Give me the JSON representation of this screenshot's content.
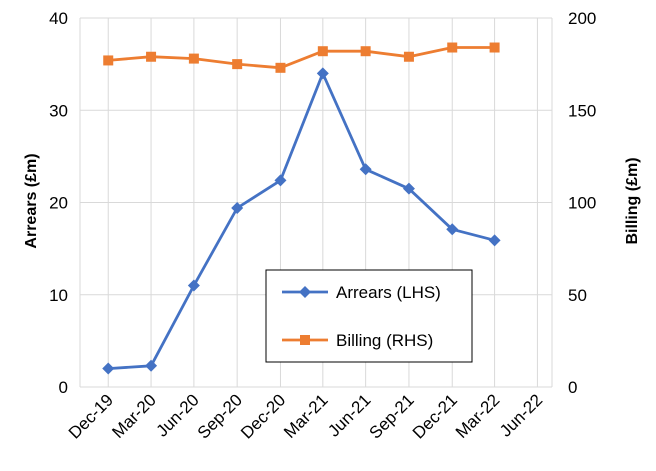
{
  "chart_data": {
    "type": "line",
    "categories": [
      "Dec-19",
      "Mar-20",
      "Jun-20",
      "Sep-20",
      "Dec-20",
      "Mar-21",
      "Jun-21",
      "Sep-21",
      "Dec-21",
      "Mar-22",
      "Jun-22"
    ],
    "series": [
      {
        "name": "Arrears (LHS)",
        "axis": "left",
        "color": "#4472C4",
        "marker": "diamond",
        "points": [
          {
            "x": "2019-12-31",
            "y": 2.0
          },
          {
            "x": "2020-03-31",
            "y": 2.3
          },
          {
            "x": "2020-06-30",
            "y": 11.0
          },
          {
            "x": "2020-09-30",
            "y": 19.4
          },
          {
            "x": "2020-12-31",
            "y": 22.4
          },
          {
            "x": "2021-03-31",
            "y": 34.0
          },
          {
            "x": "2021-06-30",
            "y": 23.6
          },
          {
            "x": "2021-09-30",
            "y": 21.5
          },
          {
            "x": "2021-12-31",
            "y": 17.1
          },
          {
            "x": "2022-03-31",
            "y": 15.9
          }
        ]
      },
      {
        "name": "Billing (RHS)",
        "axis": "right",
        "color": "#ED7D31",
        "marker": "square",
        "points": [
          {
            "x": "2019-12-31",
            "y": 177
          },
          {
            "x": "2020-03-31",
            "y": 179
          },
          {
            "x": "2020-06-30",
            "y": 178
          },
          {
            "x": "2020-09-30",
            "y": 175
          },
          {
            "x": "2020-12-31",
            "y": 173
          },
          {
            "x": "2021-03-31",
            "y": 182
          },
          {
            "x": "2021-06-30",
            "y": 182
          },
          {
            "x": "2021-09-30",
            "y": 179
          },
          {
            "x": "2021-12-31",
            "y": 184
          },
          {
            "x": "2022-03-31",
            "y": 184
          }
        ]
      }
    ],
    "ylabel_left": "Arrears (£m)",
    "ylabel_right": "Billing (£m)",
    "ylim_left": [
      0,
      40
    ],
    "yticks_left": [
      0,
      10,
      20,
      30,
      40
    ],
    "ylim_right": [
      0,
      200
    ],
    "yticks_right": [
      0,
      50,
      100,
      150,
      200
    ],
    "xlim": [
      "2019-11-01",
      "2022-07-31"
    ],
    "grid": true,
    "legend_position": "bottom-right-inside"
  }
}
